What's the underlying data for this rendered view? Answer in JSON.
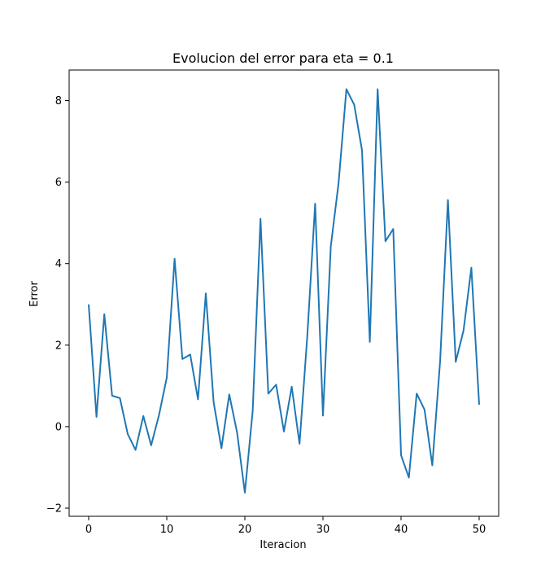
{
  "chart_data": {
    "type": "line",
    "title": "Evolucion del error para eta = 0.1",
    "xlabel": "Iteracion",
    "ylabel": "Error",
    "xlim": [
      -2.5,
      52.5
    ],
    "ylim": [
      -2.2,
      8.75
    ],
    "xticks": [
      0,
      10,
      20,
      30,
      40,
      50
    ],
    "yticks": [
      -2,
      0,
      2,
      4,
      6,
      8
    ],
    "grid": false,
    "line_color": "#1f77b4",
    "series": [
      {
        "x": [
          0,
          1,
          2,
          3,
          4,
          5,
          6,
          7,
          8,
          9,
          10,
          11,
          12,
          13,
          14,
          15,
          16,
          17,
          18,
          19,
          20,
          21,
          22,
          23,
          24,
          25,
          26,
          27,
          28,
          29,
          30,
          31,
          32,
          33,
          34,
          35,
          36,
          37,
          38,
          39,
          40,
          41,
          42,
          43,
          44,
          45,
          46,
          47,
          48,
          49,
          50
        ],
        "values": [
          3.0,
          0.24,
          2.76,
          0.76,
          0.7,
          -0.18,
          -0.57,
          0.26,
          -0.46,
          0.28,
          1.2,
          4.12,
          1.66,
          1.77,
          0.67,
          3.27,
          0.6,
          -0.53,
          0.79,
          -0.14,
          -1.62,
          0.38,
          5.1,
          0.81,
          1.03,
          -0.12,
          0.98,
          -0.42,
          2.24,
          5.47,
          0.27,
          4.42,
          5.98,
          8.28,
          7.9,
          6.78,
          2.08,
          8.28,
          4.55,
          4.85,
          -0.7,
          -1.25,
          0.81,
          0.42,
          -0.95,
          1.6,
          5.56,
          1.59,
          2.36,
          3.9,
          0.54
        ]
      }
    ]
  }
}
